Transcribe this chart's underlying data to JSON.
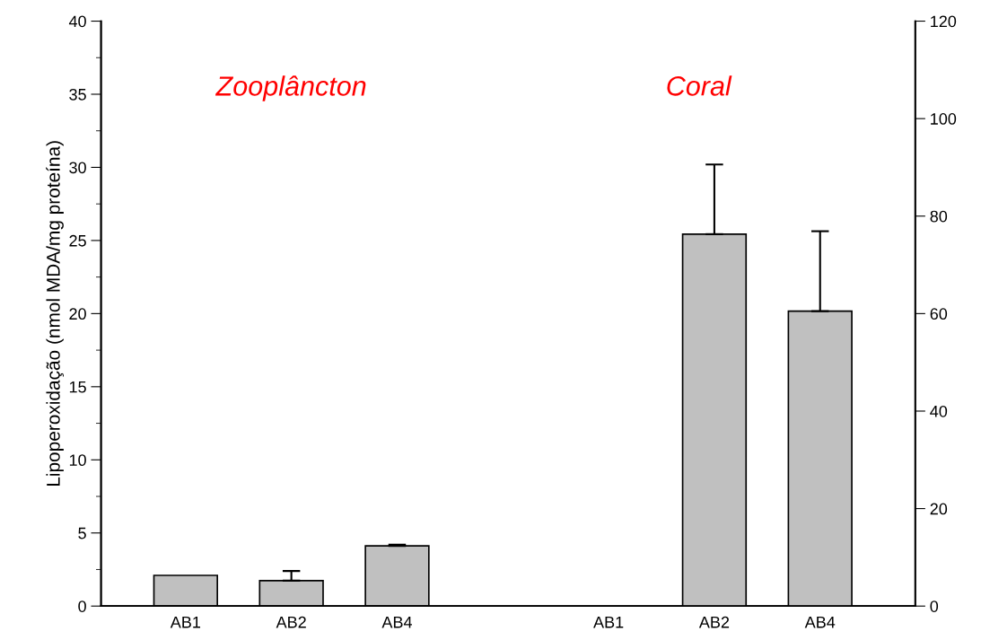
{
  "chart_data": {
    "type": "bar",
    "ylabel": "Lipoperoxidação (nmol MDA/mg proteína)",
    "categories": [
      "AB1",
      "AB2",
      "AB4",
      null,
      "AB1",
      "AB2",
      "AB4"
    ],
    "series": [
      {
        "color": "#c0c0c0",
        "values": [
          2.1,
          1.74,
          4.12,
          null,
          null,
          null,
          null
        ],
        "errors": [
          null,
          [
            1.74,
            2.4
          ],
          [
            4.12,
            4.2
          ],
          null,
          null,
          null,
          null
        ]
      },
      {
        "color": "#c0c0c0",
        "axis": "y2",
        "values": [
          null,
          null,
          null,
          null,
          null,
          76.3,
          60.5
        ],
        "errors": [
          null,
          null,
          null,
          null,
          null,
          [
            76.3,
            90.6
          ],
          [
            60.5,
            76.9
          ]
        ]
      }
    ],
    "ylim": [
      0,
      40
    ],
    "yticks": [
      0,
      5,
      10,
      15,
      20,
      25,
      30,
      35,
      40
    ],
    "y2lim": [
      0,
      120
    ],
    "y2ticks": [
      0,
      20,
      40,
      60,
      80,
      100,
      120
    ],
    "annotations": [
      "Zooplâncton",
      "Coral"
    ],
    "grid": false,
    "legend": false
  }
}
